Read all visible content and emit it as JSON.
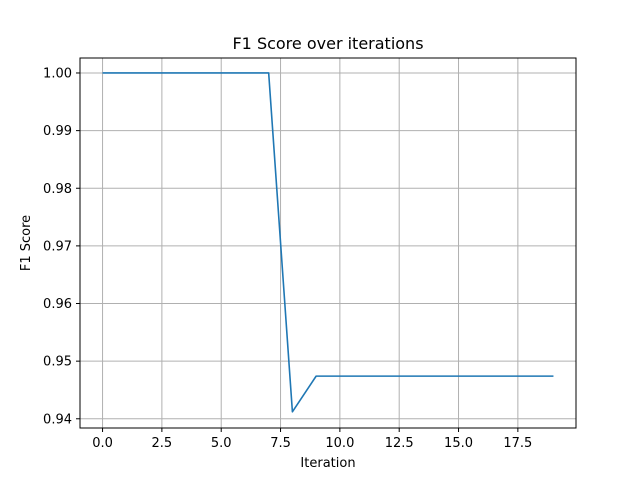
{
  "chart_data": {
    "type": "line",
    "title": "F1 Score over iterations",
    "xlabel": "Iteration",
    "ylabel": "F1 Score",
    "xlim": [
      -0.95,
      19.95
    ],
    "ylim": [
      0.9384,
      1.0026
    ],
    "xticks": [
      0.0,
      2.5,
      5.0,
      7.5,
      10.0,
      12.5,
      15.0,
      17.5
    ],
    "xtick_labels": [
      "0.0",
      "2.5",
      "5.0",
      "7.5",
      "10.0",
      "12.5",
      "15.0",
      "17.5"
    ],
    "yticks": [
      0.94,
      0.95,
      0.96,
      0.97,
      0.98,
      0.99,
      1.0
    ],
    "ytick_labels": [
      "0.94",
      "0.95",
      "0.96",
      "0.97",
      "0.98",
      "0.99",
      "1.00"
    ],
    "grid": true,
    "series": [
      {
        "color": "#1f77b4",
        "x": [
          0,
          1,
          2,
          3,
          4,
          5,
          6,
          7,
          8,
          9,
          10,
          11,
          12,
          13,
          14,
          15,
          16,
          17,
          18,
          19
        ],
        "y": [
          1.0,
          1.0,
          1.0,
          1.0,
          1.0,
          1.0,
          1.0,
          1.0,
          0.9412,
          0.9474,
          0.9474,
          0.9474,
          0.9474,
          0.9474,
          0.9474,
          0.9474,
          0.9474,
          0.9474,
          0.9474,
          0.9474
        ]
      }
    ]
  }
}
